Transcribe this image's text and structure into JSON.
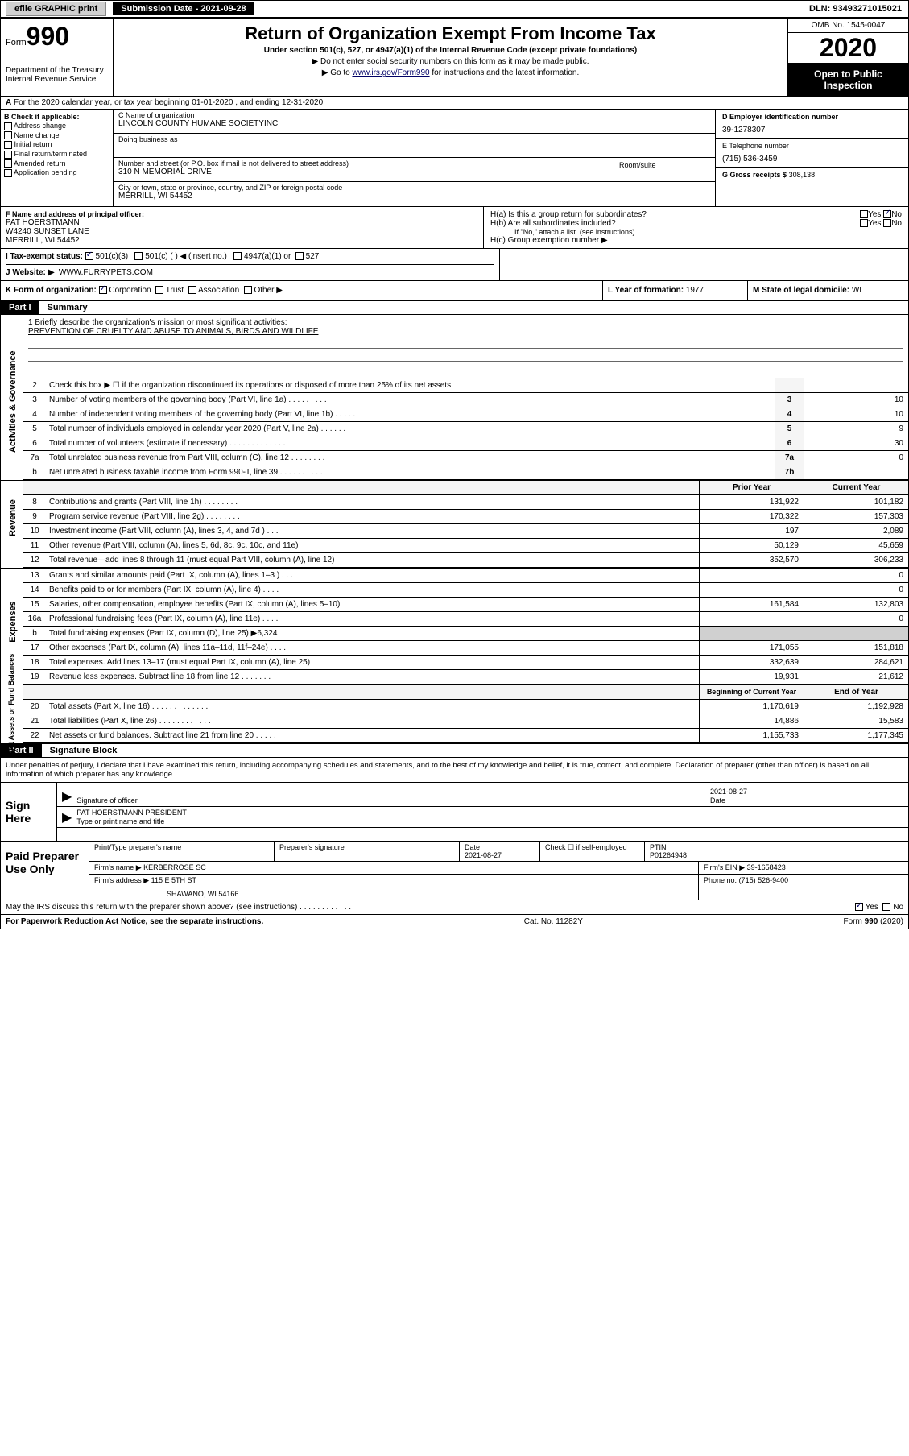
{
  "topbar": {
    "efile": "efile GRAPHIC print",
    "submission": "Submission Date - 2021-09-28",
    "dln": "DLN: 93493271015021"
  },
  "header": {
    "form_prefix": "Form",
    "form_num": "990",
    "dept": "Department of the Treasury",
    "irs": "Internal Revenue Service",
    "title": "Return of Organization Exempt From Income Tax",
    "subtitle": "Under section 501(c), 527, or 4947(a)(1) of the Internal Revenue Code (except private foundations)",
    "inst1": "▶ Do not enter social security numbers on this form as it may be made public.",
    "inst2_pre": "▶ Go to ",
    "inst2_link": "www.irs.gov/Form990",
    "inst2_post": " for instructions and the latest information.",
    "omb": "OMB No. 1545-0047",
    "year": "2020",
    "open": "Open to Public Inspection"
  },
  "line_a": "For the 2020 calendar year, or tax year beginning 01-01-2020    , and ending 12-31-2020",
  "box_b": {
    "title": "B Check if applicable:",
    "items": [
      "Address change",
      "Name change",
      "Initial return",
      "Final return/terminated",
      "Amended return",
      "Application pending"
    ]
  },
  "box_c": {
    "name_lbl": "C Name of organization",
    "name": "LINCOLN COUNTY HUMANE SOCIETYINC",
    "dba_lbl": "Doing business as",
    "street_lbl": "Number and street (or P.O. box if mail is not delivered to street address)",
    "room_lbl": "Room/suite",
    "street": "310 N MEMORIAL DRIVE",
    "city_lbl": "City or town, state or province, country, and ZIP or foreign postal code",
    "city": "MERRILL, WI  54452"
  },
  "box_d": {
    "lbl": "D Employer identification number",
    "val": "39-1278307"
  },
  "box_e": {
    "lbl": "E Telephone number",
    "val": "(715) 536-3459"
  },
  "box_g": {
    "lbl": "G Gross receipts $",
    "val": "308,138"
  },
  "box_f": {
    "lbl": "F Name and address of principal officer:",
    "name": "PAT HOERSTMANN",
    "addr1": "W4240 SUNSET LANE",
    "addr2": "MERRILL, WI  54452"
  },
  "box_h": {
    "ha": "H(a)  Is this a group return for subordinates?",
    "hb": "H(b)  Are all subordinates included?",
    "hb_note": "If \"No,\" attach a list. (see instructions)",
    "hc": "H(c)  Group exemption number ▶"
  },
  "taxex": {
    "lbl": "I    Tax-exempt status:",
    "opt1": "501(c)(3)",
    "opt2": "501(c) (  ) ◀ (insert no.)",
    "opt3": "4947(a)(1) or",
    "opt4": "527"
  },
  "website": {
    "lbl": "J    Website: ▶",
    "val": "WWW.FURRYPETS.COM"
  },
  "box_k": {
    "lbl": "K Form of organization:",
    "opts": [
      "Corporation",
      "Trust",
      "Association",
      "Other ▶"
    ]
  },
  "box_l": {
    "lbl": "L Year of formation:",
    "val": "1977"
  },
  "box_m": {
    "lbl": "M State of legal domicile:",
    "val": "WI"
  },
  "part1": {
    "num": "Part I",
    "title": "Summary"
  },
  "mission": {
    "lbl": "1   Briefly describe the organization's mission or most significant activities:",
    "text": "PREVENTION OF CRUELTY AND ABUSE TO ANIMALS, BIRDS AND WILDLIFE"
  },
  "gov_rows": [
    {
      "n": "2",
      "desc": "Check this box ▶ ☐  if the organization discontinued its operations or disposed of more than 25% of its net assets.",
      "box": "",
      "val": ""
    },
    {
      "n": "3",
      "desc": "Number of voting members of the governing body (Part VI, line 1a)   .    .    .    .    .    .    .    .    .",
      "box": "3",
      "val": "10"
    },
    {
      "n": "4",
      "desc": "Number of independent voting members of the governing body (Part VI, line 1b)  .    .    .    .    .",
      "box": "4",
      "val": "10"
    },
    {
      "n": "5",
      "desc": "Total number of individuals employed in calendar year 2020 (Part V, line 2a)   .    .    .    .    .    .",
      "box": "5",
      "val": "9"
    },
    {
      "n": "6",
      "desc": "Total number of volunteers (estimate if necessary)   .    .    .    .    .    .    .    .    .    .    .    .    .",
      "box": "6",
      "val": "30"
    },
    {
      "n": "7a",
      "desc": "Total unrelated business revenue from Part VIII, column (C), line 12  .    .    .    .    .    .    .    .    .",
      "box": "7a",
      "val": "0"
    },
    {
      "n": "b",
      "desc": "Net unrelated business taxable income from Form 990-T, line 39   .    .    .    .    .    .    .    .    .    .",
      "box": "7b",
      "val": ""
    }
  ],
  "fin_hdr": {
    "prior": "Prior Year",
    "current": "Current Year"
  },
  "rev_rows": [
    {
      "n": "8",
      "desc": "Contributions and grants (Part VIII, line 1h)  .    .    .    .    .    .    .    .",
      "p": "131,922",
      "c": "101,182"
    },
    {
      "n": "9",
      "desc": "Program service revenue (Part VIII, line 2g)  .    .    .    .    .    .    .    .",
      "p": "170,322",
      "c": "157,303"
    },
    {
      "n": "10",
      "desc": "Investment income (Part VIII, column (A), lines 3, 4, and 7d )  .    .    .",
      "p": "197",
      "c": "2,089"
    },
    {
      "n": "11",
      "desc": "Other revenue (Part VIII, column (A), lines 5, 6d, 8c, 9c, 10c, and 11e)",
      "p": "50,129",
      "c": "45,659"
    },
    {
      "n": "12",
      "desc": "Total revenue—add lines 8 through 11 (must equal Part VIII, column (A), line 12)",
      "p": "352,570",
      "c": "306,233"
    }
  ],
  "exp_rows": [
    {
      "n": "13",
      "desc": "Grants and similar amounts paid (Part IX, column (A), lines 1–3 )  .    .    .",
      "p": "",
      "c": "0"
    },
    {
      "n": "14",
      "desc": "Benefits paid to or for members (Part IX, column (A), line 4)  .    .    .    .",
      "p": "",
      "c": "0"
    },
    {
      "n": "15",
      "desc": "Salaries, other compensation, employee benefits (Part IX, column (A), lines 5–10)",
      "p": "161,584",
      "c": "132,803"
    },
    {
      "n": "16a",
      "desc": "Professional fundraising fees (Part IX, column (A), line 11e)  .    .    .    .",
      "p": "",
      "c": "0"
    },
    {
      "n": "b",
      "desc": "Total fundraising expenses (Part IX, column (D), line 25) ▶6,324",
      "p": "sh",
      "c": "sh"
    },
    {
      "n": "17",
      "desc": "Other expenses (Part IX, column (A), lines 11a–11d, 11f–24e)  .    .    .    .",
      "p": "171,055",
      "c": "151,818"
    },
    {
      "n": "18",
      "desc": "Total expenses. Add lines 13–17 (must equal Part IX, column (A), line 25)",
      "p": "332,639",
      "c": "284,621"
    },
    {
      "n": "19",
      "desc": "Revenue less expenses. Subtract line 18 from line 12  .    .    .    .    .    .    .",
      "p": "19,931",
      "c": "21,612"
    }
  ],
  "net_hdr": {
    "beg": "Beginning of Current Year",
    "end": "End of Year"
  },
  "net_rows": [
    {
      "n": "20",
      "desc": "Total assets (Part X, line 16)  .    .    .    .    .    .    .    .    .    .    .    .    .",
      "p": "1,170,619",
      "c": "1,192,928"
    },
    {
      "n": "21",
      "desc": "Total liabilities (Part X, line 26)  .    .    .    .    .    .    .    .    .    .    .    .",
      "p": "14,886",
      "c": "15,583"
    },
    {
      "n": "22",
      "desc": "Net assets or fund balances. Subtract line 21 from line 20  .    .    .    .    .",
      "p": "1,155,733",
      "c": "1,177,345"
    }
  ],
  "side_labels": {
    "gov": "Activities & Governance",
    "rev": "Revenue",
    "exp": "Expenses",
    "net": "Net Assets or Fund Balances"
  },
  "part2": {
    "num": "Part II",
    "title": "Signature Block"
  },
  "sig_text": "Under penalties of perjury, I declare that I have examined this return, including accompanying schedules and statements, and to the best of my knowledge and belief, it is true, correct, and complete. Declaration of preparer (other than officer) is based on all information of which preparer has any knowledge.",
  "sign": {
    "here": "Sign Here",
    "off_lbl": "Signature of officer",
    "date_lbl": "Date",
    "date": "2021-08-27",
    "name": "PAT HOERSTMANN  PRESIDENT",
    "name_lbl": "Type or print name and title"
  },
  "prep": {
    "title": "Paid Preparer Use Only",
    "name_lbl": "Print/Type preparer's name",
    "sig_lbl": "Preparer's signature",
    "date_lbl": "Date",
    "date": "2021-08-27",
    "self_lbl": "Check ☐ if self-employed",
    "ptin_lbl": "PTIN",
    "ptin": "P01264948",
    "firm_lbl": "Firm's name    ▶",
    "firm": "KERBERROSE SC",
    "ein_lbl": "Firm's EIN ▶",
    "ein": "39-1658423",
    "addr_lbl": "Firm's address ▶",
    "addr1": "115 E 5TH ST",
    "addr2": "SHAWANO, WI  54166",
    "phone_lbl": "Phone no.",
    "phone": "(715) 526-9400"
  },
  "discuss": "May the IRS discuss this return with the preparer shown above? (see instructions)   .    .    .    .    .    .    .    .    .    .    .    .",
  "footer": {
    "left": "For Paperwork Reduction Act Notice, see the separate instructions.",
    "mid": "Cat. No. 11282Y",
    "right": "Form 990 (2020)"
  },
  "colors": {
    "text": "#000000",
    "bg": "#ffffff",
    "black_bg": "#000000",
    "gray_bg": "#d0d0d0",
    "light_gray": "#f5f5f5",
    "link": "#000066"
  }
}
